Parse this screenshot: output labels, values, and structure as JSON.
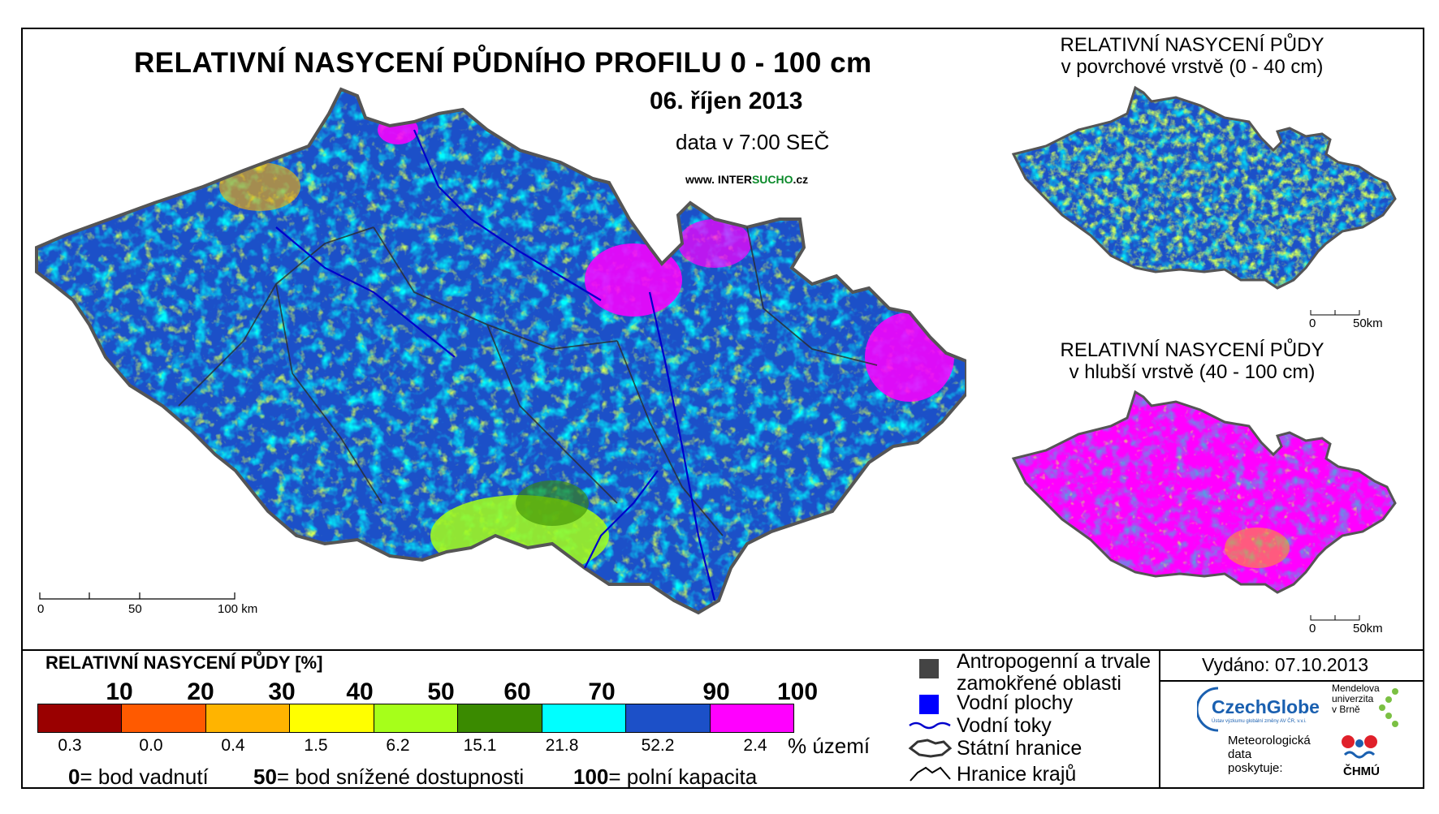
{
  "title": "RELATIVNÍ NASYCENÍ PŮDNÍHO PROFILU 0 - 100 cm",
  "date": "06. říjen 2013",
  "data_time": "data v 7:00 SEČ",
  "website": {
    "prefix": "www. INTER",
    "highlight": "SUCHO",
    "suffix": ".cz"
  },
  "inset_top": {
    "title_line1": "RELATIVNÍ NASYCENÍ PŮDY",
    "title_line2": "v povrchové vrstvě (0 - 40 cm)",
    "scale_0": "0",
    "scale_50": "50km"
  },
  "inset_bottom": {
    "title_line1": "RELATIVNÍ NASYCENÍ PŮDY",
    "title_line2": "v hlubší vrstvě (40 - 100 cm)",
    "scale_0": "0",
    "scale_50": "50km"
  },
  "main_scale": {
    "l0": "0",
    "l50": "50",
    "l100": "100 km"
  },
  "legend": {
    "title": "RELATIVNÍ NASYCENÍ PŮDY [%]",
    "ticks": [
      "10",
      "20",
      "30",
      "40",
      "50",
      "60",
      "70",
      "90",
      "100"
    ],
    "classes": [
      {
        "color": "#9a0000",
        "share": "0.3"
      },
      {
        "color": "#ff5a00",
        "share": "0.0"
      },
      {
        "color": "#ffb400",
        "share": "0.4"
      },
      {
        "color": "#ffff00",
        "share": "1.5"
      },
      {
        "color": "#a6ff1a",
        "share": "6.2"
      },
      {
        "color": "#3a8a00",
        "share": "15.1"
      },
      {
        "color": "#00ffff",
        "share": "21.8"
      },
      {
        "color": "#1c50c8",
        "share": "52.2"
      },
      {
        "color": "#ff00ff",
        "share": "2.4"
      }
    ],
    "share_label": "% území",
    "explain": {
      "v0": "0",
      "t0": "= bod vadnutí",
      "v50": "50",
      "t50": "= bod snížené dostupnosti",
      "v100": "100",
      "t100": "= polní kapacita"
    }
  },
  "map_legend": {
    "anthro_line1": "Antropogenní a trvale",
    "anthro_line2": "zamokřené oblasti",
    "water_areas": "Vodní plochy",
    "rivers": "Vodní toky",
    "border": "Státní hranice",
    "regions": "Hranice krajů",
    "anthro_color": "#444444",
    "water_color": "#0000ff"
  },
  "issued": "Vydáno: 07.10.2013",
  "logos": {
    "czechglobe": "CzechGlobe",
    "czechglobe_sub": "Ústav výzkumu globální změny AV ČR, v.v.i.",
    "mendel_line1": "Mendelova",
    "mendel_line2": "univerzita",
    "mendel_line3": "v Brně",
    "chmu": "ČHMÚ",
    "provider_line1": "Meteorologická",
    "provider_line2": "data",
    "provider_line3": "poskytuje:"
  }
}
